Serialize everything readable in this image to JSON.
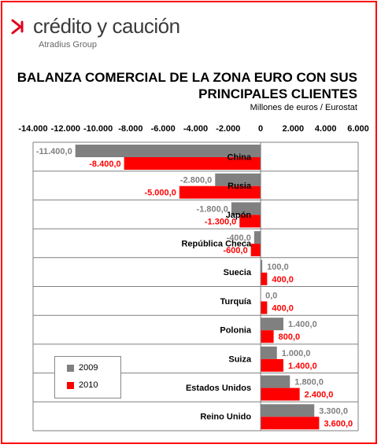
{
  "logo": {
    "name": "crédito y caución",
    "sub": "Atradius Group"
  },
  "chart_data": {
    "type": "bar",
    "orientation": "horizontal",
    "title": "BALANZA COMERCIAL DE LA ZONA EURO CON SUS PRINCIPALES CLIENTES",
    "subtitle": "Millones de euros / Eurostat",
    "xlim": [
      -14000,
      6000
    ],
    "ticks": [
      -14000,
      -12000,
      -10000,
      -8000,
      -6000,
      -4000,
      -2000,
      0,
      2000,
      4000,
      6000
    ],
    "tick_labels": [
      "-14.000",
      "-12.000",
      "-10.000",
      "-8.000",
      "-6.000",
      "-4.000",
      "-2.000",
      "0",
      "2.000",
      "4.000",
      "6.000"
    ],
    "categories": [
      "China",
      "Rusia",
      "Japón",
      "República Checa",
      "Suecia",
      "Turquía",
      "Polonia",
      "Suiza",
      "Estados Unidos",
      "Reino Unido"
    ],
    "series": [
      {
        "name": "2009",
        "color": "#808080",
        "values": [
          -11400,
          -2800,
          -1800,
          -400,
          100,
          0,
          1400,
          1000,
          1800,
          3300
        ],
        "labels": [
          "-11.400,0",
          "-2.800,0",
          "-1.800,0",
          "-400,0",
          "100,0",
          "0,0",
          "1.400,0",
          "1.000,0",
          "1.800,0",
          "3.300,0"
        ]
      },
      {
        "name": "2010",
        "color": "#ff0000",
        "values": [
          -8400,
          -5000,
          -1300,
          -600,
          400,
          400,
          800,
          1400,
          2400,
          3600
        ],
        "labels": [
          "-8.400,0",
          "-5.000,0",
          "-1.300,0",
          "-600,0",
          "400,0",
          "400,0",
          "800,0",
          "1.400,0",
          "2.400,0",
          "3.600,0"
        ]
      }
    ],
    "legend": "bottom-left",
    "grid": true
  }
}
